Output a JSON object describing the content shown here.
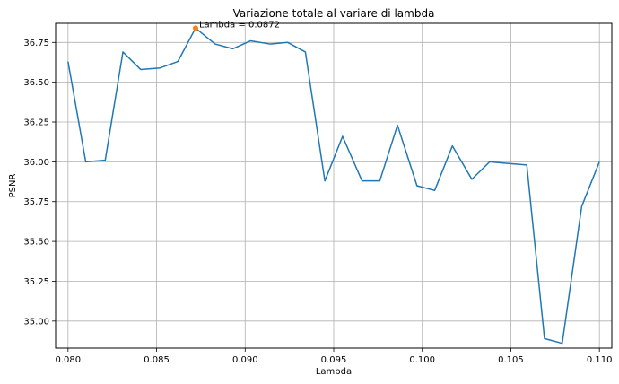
{
  "chart_data": {
    "type": "line",
    "title": "Variazione totale al variare di lambda",
    "xlabel": "Lambda",
    "ylabel": "PSNR",
    "xlim": [
      0.0793,
      0.1107
    ],
    "ylim": [
      34.83,
      36.87
    ],
    "grid": true,
    "xticks": [
      0.08,
      0.085,
      0.09,
      0.095,
      0.1,
      0.105,
      0.11
    ],
    "xtick_labels": [
      "0.080",
      "0.085",
      "0.090",
      "0.095",
      "0.100",
      "0.105",
      "0.110"
    ],
    "yticks": [
      35.0,
      35.25,
      35.5,
      35.75,
      36.0,
      36.25,
      36.5,
      36.75
    ],
    "ytick_labels": [
      "35.00",
      "35.25",
      "35.50",
      "35.75",
      "36.00",
      "36.25",
      "36.50",
      "36.75"
    ],
    "series": [
      {
        "color": "#1f77b4",
        "x": [
          0.08,
          0.081,
          0.0821,
          0.0831,
          0.0841,
          0.0852,
          0.0862,
          0.0872,
          0.0883,
          0.0893,
          0.0903,
          0.0914,
          0.0924,
          0.0934,
          0.0945,
          0.0955,
          0.0966,
          0.0976,
          0.0986,
          0.0997,
          0.1007,
          0.1017,
          0.1028,
          0.1038,
          0.1048,
          0.1059,
          0.1069,
          0.1079,
          0.109,
          0.11
        ],
        "values": [
          36.63,
          36.0,
          36.01,
          36.69,
          36.58,
          36.59,
          36.63,
          36.84,
          36.74,
          36.71,
          36.76,
          36.74,
          36.75,
          36.69,
          35.88,
          36.16,
          35.88,
          35.88,
          36.23,
          35.85,
          35.82,
          36.1,
          35.89,
          36.0,
          35.99,
          35.98,
          34.89,
          34.86,
          35.72,
          36.0
        ]
      }
    ],
    "highlight": {
      "x": 0.0872,
      "y": 36.84,
      "color": "#ff7f0e"
    },
    "annotation": "Lambda = 0.0872"
  }
}
